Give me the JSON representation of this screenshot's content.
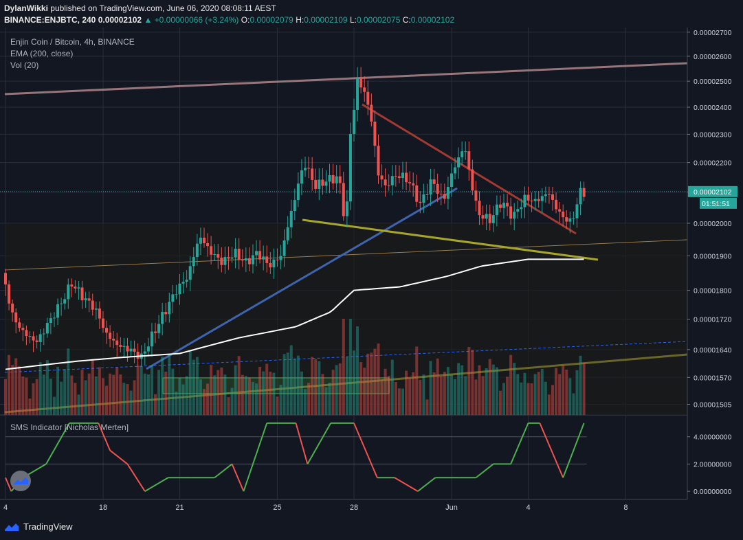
{
  "header": {
    "author": "DylanWikki",
    "published": "published on TradingView.com, June 06, 2020 08:08:11 AEST",
    "symbol": "BINANCE:ENJBTC, 240",
    "last": "0.00002102",
    "change": "▲ +0.00000066 (+3.24%)",
    "o_label": "O:",
    "o_value": "0.00002079",
    "h_label": "H:",
    "h_value": "0.00002109",
    "l_label": "L:",
    "l_value": "0.00002075",
    "c_label": "C:",
    "c_value": "0.00002102"
  },
  "legend": {
    "title": "Enjin Coin / Bitcoin, 4h, BINANCE",
    "ema": "EMA (200, close)",
    "vol": "Vol (20)",
    "indicator": "SMS Indicator [Nicholas Merten]"
  },
  "price_tags": {
    "last_price": "0.00002102",
    "countdown": "01:51:51"
  },
  "brand": "TradingView",
  "colors": {
    "background": "#131722",
    "up": "#26a69a",
    "down": "#ef5350",
    "ema": "#ffffff",
    "grid": "#2a2e39",
    "axis_text": "#d1d4dc",
    "last_price_tag": "#26a69a",
    "sms_up": "#4caf50",
    "sms_down": "#ef5350"
  },
  "chart_data": {
    "type": "candlestick",
    "symbol": "ENJBTC",
    "timeframe": "4h",
    "price_axis": {
      "ticks": [
        2.7e-05,
        2.6e-05,
        2.5e-05,
        2.4e-05,
        2.3e-05,
        2.2e-05,
        2.1e-05,
        2e-05,
        1.9e-05,
        1.8e-05,
        1.72e-05,
        1.64e-05,
        1.57e-05,
        1.505e-05
      ],
      "tick_labels": [
        "0.00002700",
        "0.00002600",
        "0.00002500",
        "0.00002400",
        "0.00002300",
        "0.00002200",
        "0.00002100",
        "0.00002000",
        "0.00001900",
        "0.00001800",
        "0.00001720",
        "0.00001640",
        "0.00001570",
        "0.00001505"
      ],
      "range": [
        1.48e-05,
        2.72e-05
      ],
      "scale": "log"
    },
    "time_axis": {
      "tick_labels": [
        "4",
        "18",
        "21",
        "25",
        "28",
        "Jun",
        "4",
        "8"
      ],
      "bar_index": [
        0,
        84,
        150,
        234,
        300,
        384,
        450,
        534
      ]
    },
    "last_bar_index": 498,
    "series": [
      {
        "name": "price",
        "anchors": [
          [
            0,
            1.85e-05
          ],
          [
            10,
            1.72e-05
          ],
          [
            20,
            1.68e-05
          ],
          [
            30,
            1.66e-05
          ],
          [
            40,
            1.71e-05
          ],
          [
            50,
            1.76e-05
          ],
          [
            60,
            1.82e-05
          ],
          [
            70,
            1.78e-05
          ],
          [
            80,
            1.75e-05
          ],
          [
            90,
            1.68e-05
          ],
          [
            100,
            1.65e-05
          ],
          [
            110,
            1.64e-05
          ],
          [
            120,
            1.62e-05
          ],
          [
            130,
            1.68e-05
          ],
          [
            140,
            1.74e-05
          ],
          [
            150,
            1.8e-05
          ],
          [
            160,
            1.84e-05
          ],
          [
            170,
            1.96e-05
          ],
          [
            180,
            1.91e-05
          ],
          [
            190,
            1.88e-05
          ],
          [
            200,
            1.91e-05
          ],
          [
            210,
            1.88e-05
          ],
          [
            220,
            1.91e-05
          ],
          [
            230,
            1.87e-05
          ],
          [
            240,
            1.9e-05
          ],
          [
            250,
            2.05e-05
          ],
          [
            260,
            2.2e-05
          ],
          [
            270,
            2.12e-05
          ],
          [
            280,
            2.14e-05
          ],
          [
            290,
            2.15e-05
          ],
          [
            296,
            1.98e-05
          ],
          [
            300,
            2.3e-05
          ],
          [
            306,
            2.5e-05
          ],
          [
            312,
            2.46e-05
          ],
          [
            318,
            2.35e-05
          ],
          [
            324,
            2.16e-05
          ],
          [
            330,
            2.12e-05
          ],
          [
            340,
            2.16e-05
          ],
          [
            350,
            2.14e-05
          ],
          [
            360,
            2.06e-05
          ],
          [
            370,
            2.14e-05
          ],
          [
            380,
            2.07e-05
          ],
          [
            388,
            2.17e-05
          ],
          [
            398,
            2.26e-05
          ],
          [
            404,
            2.13e-05
          ],
          [
            410,
            2.03e-05
          ],
          [
            420,
            2.01e-05
          ],
          [
            430,
            2.07e-05
          ],
          [
            440,
            2.02e-05
          ],
          [
            450,
            2.08e-05
          ],
          [
            460,
            2.07e-05
          ],
          [
            470,
            2.1e-05
          ],
          [
            480,
            2.03e-05
          ],
          [
            490,
            2e-05
          ],
          [
            498,
            2.1e-05
          ]
        ]
      },
      {
        "name": "EMA (200, close)",
        "anchors": [
          [
            0,
            1.59e-05
          ],
          [
            30,
            1.6e-05
          ],
          [
            60,
            1.61e-05
          ],
          [
            100,
            1.62e-05
          ],
          [
            150,
            1.63e-05
          ],
          [
            200,
            1.67e-05
          ],
          [
            250,
            1.7e-05
          ],
          [
            280,
            1.74e-05
          ],
          [
            300,
            1.8e-05
          ],
          [
            340,
            1.81e-05
          ],
          [
            380,
            1.84e-05
          ],
          [
            410,
            1.87e-05
          ],
          [
            450,
            1.89e-05
          ],
          [
            498,
            1.89e-05
          ]
        ]
      },
      {
        "name": "SMS Indicator [Nicholas Merten]",
        "axis_labels": [
          "4.00000000",
          "2.00000000",
          "0.00000000"
        ],
        "ticks": [
          4,
          2,
          0
        ],
        "range": [
          -0.6,
          5.6
        ],
        "anchors": [
          [
            0,
            1
          ],
          [
            5,
            0
          ],
          [
            15,
            1
          ],
          [
            35,
            2
          ],
          [
            55,
            5
          ],
          [
            80,
            5
          ],
          [
            90,
            3
          ],
          [
            105,
            2
          ],
          [
            120,
            0
          ],
          [
            140,
            1
          ],
          [
            160,
            1
          ],
          [
            180,
            1
          ],
          [
            195,
            2
          ],
          [
            205,
            0
          ],
          [
            225,
            5
          ],
          [
            250,
            5
          ],
          [
            260,
            2
          ],
          [
            280,
            5
          ],
          [
            300,
            5
          ],
          [
            320,
            1
          ],
          [
            335,
            1
          ],
          [
            355,
            0
          ],
          [
            370,
            1
          ],
          [
            390,
            1
          ],
          [
            405,
            1
          ],
          [
            420,
            2
          ],
          [
            435,
            2
          ],
          [
            450,
            5
          ],
          [
            460,
            5
          ],
          [
            480,
            1
          ],
          [
            498,
            5
          ]
        ]
      }
    ],
    "volume_max": 9.8
  }
}
